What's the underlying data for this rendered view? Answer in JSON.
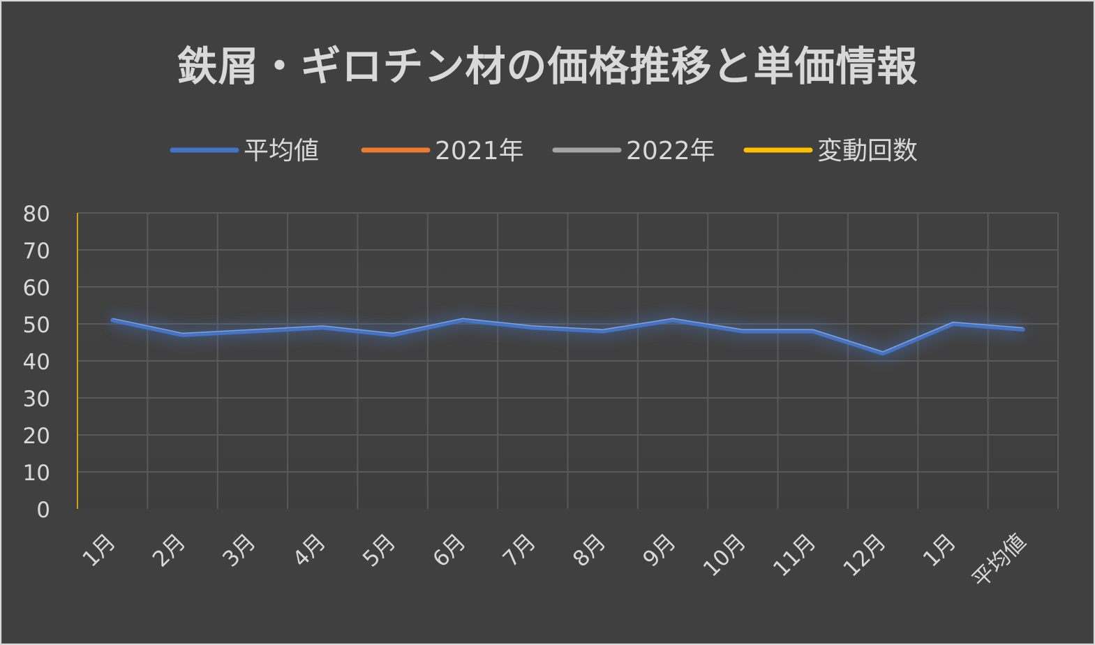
{
  "chart_data": {
    "type": "line",
    "title": "鉄屑・ギロチン材の価格推移と単価情報",
    "categories": [
      "1月",
      "2月",
      "3月",
      "4月",
      "5月",
      "6月",
      "7月",
      "8月",
      "9月",
      "10月",
      "11月",
      "12月",
      "1月",
      "平均値"
    ],
    "series": [
      {
        "name": "平均値",
        "color": "#4472c4",
        "values": [
          51,
          47,
          48,
          49,
          47,
          51,
          49,
          48,
          51,
          48,
          48,
          42,
          50,
          48.5
        ]
      },
      {
        "name": "2021年",
        "color": "#ed7d31",
        "values": [
          null,
          null,
          null,
          null,
          null,
          null,
          null,
          null,
          null,
          null,
          null,
          null,
          null,
          null
        ]
      },
      {
        "name": "2022年",
        "color": "#a5a5a5",
        "values": [
          null,
          null,
          null,
          null,
          null,
          null,
          null,
          null,
          null,
          null,
          null,
          null,
          null,
          null
        ]
      },
      {
        "name": "変動回数",
        "color": "#ffc000",
        "values": [
          null,
          null,
          null,
          null,
          null,
          null,
          null,
          null,
          null,
          null,
          null,
          null,
          null,
          null
        ]
      }
    ],
    "ylim": [
      0,
      80
    ],
    "yticks": [
      0,
      10,
      20,
      30,
      40,
      50,
      60,
      70,
      80
    ],
    "grid": true,
    "legend": "top"
  }
}
